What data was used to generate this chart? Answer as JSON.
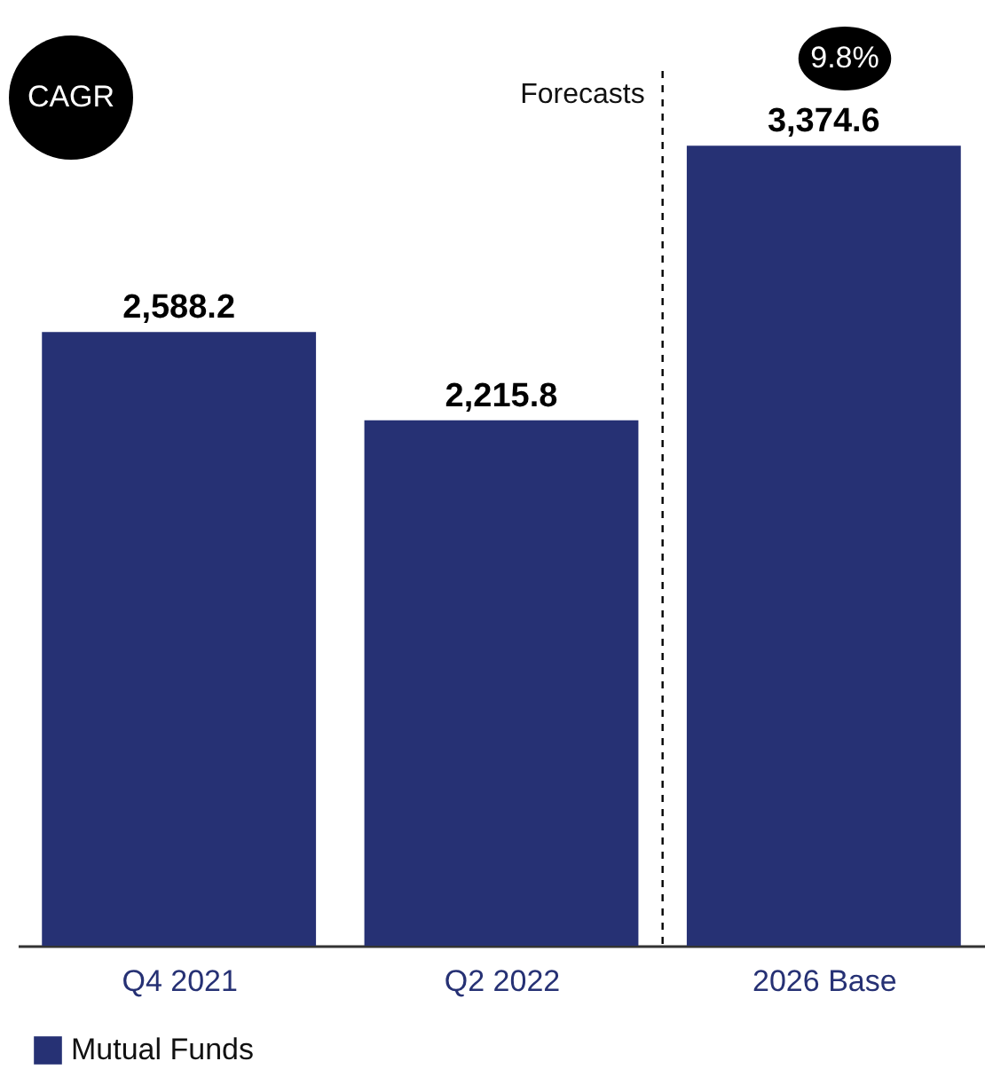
{
  "chart_data": {
    "type": "bar",
    "categories": [
      "Q4 2021",
      "Q2 2022",
      "2026 Base"
    ],
    "series": [
      {
        "name": "Mutual Funds",
        "color": "#263174",
        "values": [
          2588.2,
          2215.8,
          3374.6
        ],
        "value_labels": [
          "2,588.2",
          "2,215.8",
          "3,374.6"
        ]
      }
    ],
    "legend": "bottom",
    "grid": false,
    "annotations": [
      "CAGR",
      "9.8%",
      "Forecasts"
    ]
  }
}
